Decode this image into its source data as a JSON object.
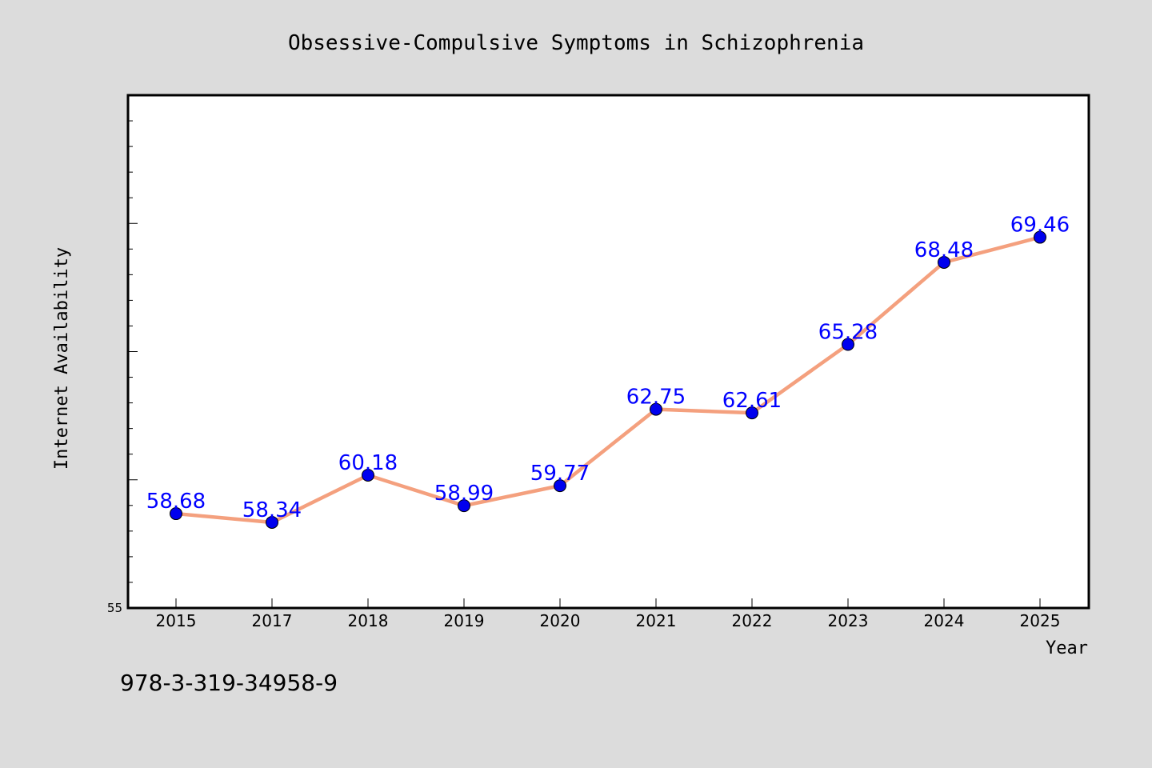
{
  "chart_data": {
    "type": "line",
    "title": "Obsessive-Compulsive Symptoms in Schizophrenia",
    "xlabel": "Year",
    "ylabel": "Internet Availability",
    "categories": [
      "2015",
      "2017",
      "2018",
      "2019",
      "2020",
      "2021",
      "2022",
      "2023",
      "2024",
      "2025"
    ],
    "series": [
      {
        "values": [
          58.68,
          58.34,
          60.18,
          58.99,
          59.77,
          62.75,
          62.61,
          65.28,
          68.48,
          69.46
        ],
        "labels": [
          "58.68",
          "58.34",
          "60.18",
          "58.99",
          "59.77",
          "62.75",
          "62.61",
          "65.28",
          "68.48",
          "69.46"
        ]
      }
    ],
    "ylim": [
      55,
      75
    ],
    "ytick_labels": [
      "55"
    ],
    "grid": false,
    "colors": {
      "line": "#f4a07e",
      "marker": "#0000ee",
      "data_label": "#0000ff",
      "plot_bg": "#ffffff",
      "page_bg": "#dcdcdc"
    }
  },
  "footer": {
    "isbn": "978-3-319-34958-9"
  }
}
